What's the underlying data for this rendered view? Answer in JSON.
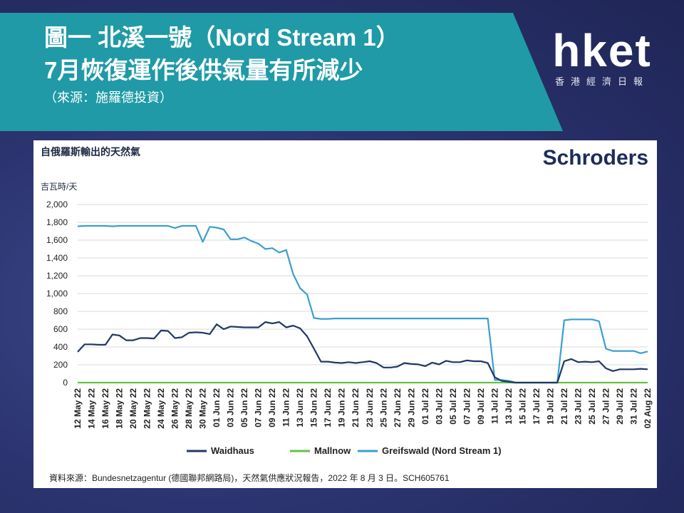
{
  "banner": {
    "title_line1": "圖一 北溪一號（Nord Stream 1）",
    "title_line2": "7月恢復運作後供氣量有所減少",
    "source_note": "（來源：施羅德投資）"
  },
  "logo": {
    "main": "hket",
    "sub": "香港經濟日報"
  },
  "brand": {
    "name": "Schroders"
  },
  "footer": {
    "source": "資料來源：Bundesnetzagentur (德國聯邦網路局)，天然氣供應狀況報告，2022 年 8 月 3 日。SCH605761"
  },
  "colors": {
    "waidhaus": "#1f3864",
    "mallnow": "#66c144",
    "greifswald": "#3a9fcf",
    "banner": "#1f9aa6"
  },
  "chart_data": {
    "type": "line",
    "title": "自俄羅斯輸出的天然氣",
    "ylabel": "吉瓦時/天",
    "ylim": [
      0,
      2000
    ],
    "yticks": [
      0,
      200,
      400,
      600,
      800,
      1000,
      1200,
      1400,
      1600,
      1800,
      2000
    ],
    "ytick_labels": [
      "0",
      "200",
      "400",
      "600",
      "800",
      "1,000",
      "1,200",
      "1,400",
      "1,600",
      "1,800",
      "2,000"
    ],
    "x": [
      "12 May 22",
      "13 May 22",
      "14 May 22",
      "15 May 22",
      "16 May 22",
      "17 May 22",
      "18 May 22",
      "19 May 22",
      "20 May 22",
      "21 May 22",
      "22 May 22",
      "23 May 22",
      "24 May 22",
      "25 May 22",
      "26 May 22",
      "27 May 22",
      "28 May 22",
      "29 May 22",
      "30 May 22",
      "31 May 22",
      "01 Jun 22",
      "02 Jun 22",
      "03 Jun 22",
      "04 Jun 22",
      "05 Jun 22",
      "06 Jun 22",
      "07 Jun 22",
      "08 Jun 22",
      "09 Jun 22",
      "10 Jun 22",
      "11 Jun 22",
      "12 Jun 22",
      "13 Jun 22",
      "14 Jun 22",
      "15 Jun 22",
      "16 Jun 22",
      "17 Jun 22",
      "18 Jun 22",
      "19 Jun 22",
      "20 Jun 22",
      "21 Jun 22",
      "22 Jun 22",
      "23 Jun 22",
      "24 Jun 22",
      "25 Jun 22",
      "26 Jun 22",
      "27 Jun 22",
      "28 Jun 22",
      "29 Jun 22",
      "30 Jun 22",
      "01 Jul 22",
      "02 Jul 22",
      "03 Jul 22",
      "04 Jul 22",
      "05 Jul 22",
      "06 Jul 22",
      "07 Jul 22",
      "08 Jul 22",
      "09 Jul 22",
      "10 Jul 22",
      "11 Jul 22",
      "12 Jul 22",
      "13 Jul 22",
      "14 Jul 22",
      "15 Jul 22",
      "16 Jul 22",
      "17 Jul 22",
      "18 Jul 22",
      "19 Jul 22",
      "20 Jul 22",
      "21 Jul 22",
      "22 Jul 22",
      "23 Jul 22",
      "24 Jul 22",
      "25 Jul 22",
      "26 Jul 22",
      "27 Jul 22",
      "28 Jul 22",
      "29 Jul 22",
      "30 Jul 22",
      "31 Jul 22",
      "01 Aug 22",
      "02 Aug 22"
    ],
    "x_tick_labels": [
      "12 May 22",
      "14 May 22",
      "16 May 22",
      "18 May 22",
      "20 May 22",
      "22 May 22",
      "24 May 22",
      "26 May 22",
      "28 May 22",
      "30 May 22",
      "01 Jun 22",
      "03 Jun 22",
      "05 Jun 22",
      "07 Jun 22",
      "09 Jun 22",
      "11 Jun 22",
      "13 Jun 22",
      "15 Jun 22",
      "17 Jun 22",
      "19 Jun 22",
      "21 Jun 22",
      "23 Jun 22",
      "25 Jun 22",
      "27 Jun 22",
      "29 Jun 22",
      "01 Jul 22",
      "03 Jul 22",
      "05 Jul 22",
      "07 Jul 22",
      "09 Jul 22",
      "11 Jul 22",
      "13 Jul 22",
      "15 Jul 22",
      "17 Jul 22",
      "19 Jul 22",
      "21 Jul 22",
      "23 Jul 22",
      "25 Jul 22",
      "27 Jul 22",
      "29 Jul 22",
      "31 Jul 22",
      "02 Aug 22"
    ],
    "series": [
      {
        "name": "Waidhaus",
        "color": "#1f3864",
        "values": [
          345,
          430,
          430,
          425,
          425,
          540,
          530,
          475,
          475,
          500,
          500,
          495,
          585,
          580,
          500,
          510,
          560,
          565,
          560,
          545,
          655,
          600,
          630,
          625,
          620,
          620,
          620,
          680,
          665,
          680,
          620,
          640,
          610,
          520,
          380,
          235,
          235,
          225,
          220,
          230,
          220,
          230,
          240,
          220,
          170,
          170,
          180,
          220,
          210,
          205,
          185,
          225,
          205,
          245,
          230,
          230,
          250,
          240,
          240,
          220,
          60,
          20,
          10,
          0,
          0,
          0,
          0,
          0,
          0,
          0,
          240,
          265,
          230,
          235,
          230,
          240,
          160,
          130,
          150,
          150,
          150,
          155,
          150
        ]
      },
      {
        "name": "Mallnow",
        "color": "#66c144",
        "values": [
          0,
          0,
          0,
          0,
          0,
          0,
          0,
          0,
          0,
          0,
          0,
          0,
          0,
          0,
          0,
          0,
          0,
          0,
          0,
          0,
          0,
          0,
          0,
          0,
          0,
          0,
          0,
          0,
          0,
          0,
          0,
          0,
          0,
          0,
          0,
          0,
          0,
          0,
          0,
          0,
          0,
          0,
          0,
          0,
          0,
          0,
          0,
          0,
          0,
          0,
          0,
          0,
          0,
          0,
          0,
          0,
          0,
          0,
          0,
          0,
          0,
          0,
          0,
          0,
          0,
          0,
          0,
          0,
          0,
          0,
          0,
          0,
          0,
          0,
          0,
          0,
          0,
          0,
          0,
          0,
          0,
          0,
          0
        ]
      },
      {
        "name": "Greifswald (Nord Stream 1)",
        "color": "#3a9fcf",
        "values": [
          1755,
          1760,
          1760,
          1760,
          1760,
          1755,
          1760,
          1760,
          1760,
          1760,
          1760,
          1760,
          1760,
          1760,
          1735,
          1760,
          1760,
          1760,
          1580,
          1750,
          1740,
          1720,
          1610,
          1610,
          1630,
          1590,
          1560,
          1500,
          1510,
          1460,
          1490,
          1220,
          1060,
          990,
          725,
          715,
          715,
          720,
          720,
          720,
          720,
          720,
          720,
          720,
          720,
          720,
          720,
          720,
          720,
          720,
          720,
          720,
          720,
          720,
          720,
          720,
          720,
          720,
          720,
          720,
          30,
          30,
          20,
          0,
          0,
          0,
          0,
          0,
          0,
          0,
          700,
          710,
          710,
          710,
          710,
          690,
          380,
          355,
          355,
          355,
          355,
          330,
          350
        ]
      }
    ],
    "legend": {
      "position": "bottom"
    },
    "grid": true
  }
}
